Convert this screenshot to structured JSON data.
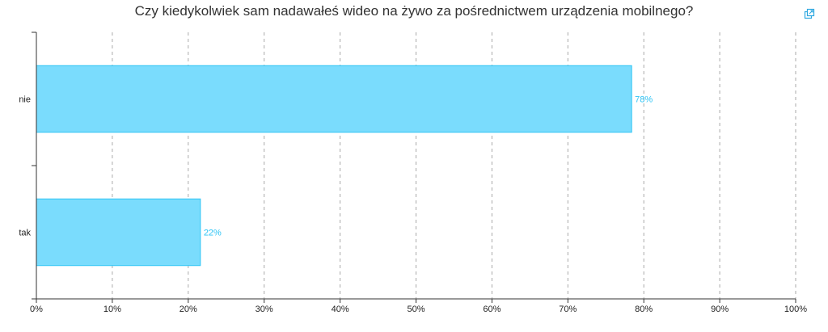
{
  "header": {
    "title": "Czy kiedykolwiek sam nadawałeś wideo na żywo za pośrednictwem urządzenia mobilnego?",
    "export_icon": "copy-export-icon"
  },
  "colors": {
    "bar_fill": "#7adcfd",
    "bar_stroke": "#2ec4f5",
    "value_label": "#2ec4f5",
    "grid": "#aaaaaa",
    "axis": "#333333"
  },
  "chart_data": {
    "type": "bar",
    "orientation": "horizontal",
    "categories": [
      "nie",
      "tak"
    ],
    "values": [
      78.4,
      21.6
    ],
    "value_labels": [
      "78%",
      "22%"
    ],
    "unit": "%",
    "xlim": [
      0,
      100
    ],
    "x_ticks": [
      0,
      10,
      20,
      30,
      40,
      50,
      60,
      70,
      80,
      90,
      100
    ],
    "x_tick_labels": [
      "0%",
      "10%",
      "20%",
      "30%",
      "40%",
      "50%",
      "60%",
      "70%",
      "80%",
      "90%",
      "100%"
    ],
    "grid": "vertical dashed",
    "legend": "none"
  }
}
